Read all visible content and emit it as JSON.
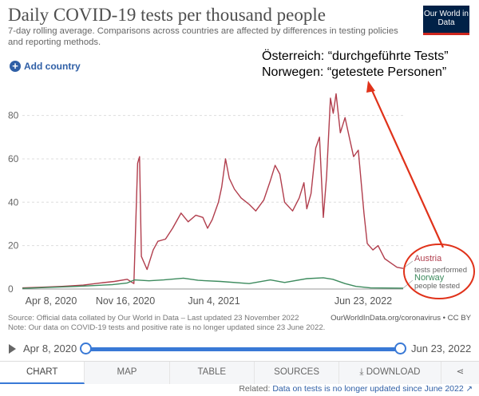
{
  "header": {
    "title": "Daily COVID-19 tests per thousand people",
    "subtitle": "7-day rolling average. Comparisons across countries are affected by differences in testing policies and reporting methods.",
    "logo": "Our World in Data"
  },
  "controls": {
    "add_country": "Add country"
  },
  "annotation": {
    "line1": "Österreich: “durchgeführte Tests”",
    "line2": "Norwegen: “getestete Personen”"
  },
  "chart_data": {
    "type": "line",
    "ylim": [
      0,
      92
    ],
    "yticks": [
      0,
      20,
      40,
      60,
      80
    ],
    "x_ticks": [
      "Apr 8, 2020",
      "Nov 16, 2020",
      "Jun 4, 2021",
      "Jun 23, 2022"
    ],
    "x_domain": [
      "2020-04-08",
      "2022-06-23"
    ],
    "series": [
      {
        "name": "Austria",
        "sublabel": "tests performed",
        "color": "#b13e4d",
        "points": [
          [
            "2020-04-08",
            0.5
          ],
          [
            "2020-05-15",
            0.8
          ],
          [
            "2020-07-01",
            1.2
          ],
          [
            "2020-08-15",
            1.8
          ],
          [
            "2020-09-20",
            2.8
          ],
          [
            "2020-10-20",
            3.5
          ],
          [
            "2020-11-16",
            4.5
          ],
          [
            "2020-11-30",
            2.5
          ],
          [
            "2020-12-08",
            58
          ],
          [
            "2020-12-12",
            61
          ],
          [
            "2020-12-16",
            15
          ],
          [
            "2020-12-28",
            9
          ],
          [
            "2021-01-10",
            18
          ],
          [
            "2021-01-20",
            22
          ],
          [
            "2021-02-05",
            23
          ],
          [
            "2021-02-20",
            28
          ],
          [
            "2021-03-10",
            35
          ],
          [
            "2021-03-25",
            31
          ],
          [
            "2021-04-10",
            34
          ],
          [
            "2021-04-25",
            33
          ],
          [
            "2021-05-05",
            28
          ],
          [
            "2021-05-15",
            32
          ],
          [
            "2021-05-28",
            40
          ],
          [
            "2021-06-04",
            47
          ],
          [
            "2021-06-12",
            60
          ],
          [
            "2021-06-20",
            51
          ],
          [
            "2021-07-01",
            46
          ],
          [
            "2021-07-15",
            42
          ],
          [
            "2021-08-01",
            39
          ],
          [
            "2021-08-15",
            36
          ],
          [
            "2021-09-01",
            41
          ],
          [
            "2021-09-15",
            50
          ],
          [
            "2021-09-25",
            57
          ],
          [
            "2021-10-05",
            53
          ],
          [
            "2021-10-15",
            40
          ],
          [
            "2021-11-01",
            36
          ],
          [
            "2021-11-15",
            42
          ],
          [
            "2021-11-25",
            49
          ],
          [
            "2021-12-01",
            37
          ],
          [
            "2021-12-10",
            44
          ],
          [
            "2021-12-20",
            65
          ],
          [
            "2021-12-28",
            70
          ],
          [
            "2022-01-05",
            33
          ],
          [
            "2022-01-12",
            52
          ],
          [
            "2022-01-20",
            88
          ],
          [
            "2022-01-26",
            81
          ],
          [
            "2022-02-01",
            90
          ],
          [
            "2022-02-10",
            72
          ],
          [
            "2022-02-20",
            79
          ],
          [
            "2022-03-01",
            70
          ],
          [
            "2022-03-10",
            61
          ],
          [
            "2022-03-20",
            64
          ],
          [
            "2022-04-01",
            35
          ],
          [
            "2022-04-08",
            21
          ],
          [
            "2022-04-20",
            18
          ],
          [
            "2022-05-01",
            20
          ],
          [
            "2022-05-15",
            14
          ],
          [
            "2022-05-28",
            12
          ],
          [
            "2022-06-10",
            10
          ],
          [
            "2022-06-23",
            9.5
          ]
        ]
      },
      {
        "name": "Norway",
        "sublabel": "people tested",
        "color": "#3d8b5e",
        "points": [
          [
            "2020-04-08",
            0.3
          ],
          [
            "2020-08-01",
            1.2
          ],
          [
            "2020-10-15",
            2.0
          ],
          [
            "2020-11-16",
            2.8
          ],
          [
            "2020-12-01",
            4.2
          ],
          [
            "2021-01-01",
            3.8
          ],
          [
            "2021-02-01",
            4.2
          ],
          [
            "2021-03-15",
            5.0
          ],
          [
            "2021-04-15",
            4.0
          ],
          [
            "2021-06-01",
            3.5
          ],
          [
            "2021-08-01",
            2.5
          ],
          [
            "2021-09-15",
            4.2
          ],
          [
            "2021-10-15",
            3.0
          ],
          [
            "2021-12-01",
            4.8
          ],
          [
            "2022-01-05",
            5.2
          ],
          [
            "2022-01-25",
            4.5
          ],
          [
            "2022-02-20",
            2.5
          ],
          [
            "2022-03-15",
            1.2
          ],
          [
            "2022-04-15",
            0.5
          ],
          [
            "2022-06-23",
            0.4
          ]
        ]
      }
    ]
  },
  "footer": {
    "source": "Source: Official data collated by Our World in Data – Last updated 23 November 2022",
    "credit": "OurWorldInData.org/coronavirus • CC BY",
    "note": "Note: Our data on COVID-19 tests and positive rate is no longer updated since 23 June 2022."
  },
  "timeline": {
    "start": "Apr 8, 2020",
    "end": "Jun 23, 2022"
  },
  "tabs": [
    "CHART",
    "MAP",
    "TABLE",
    "SOURCES",
    "DOWNLOAD"
  ],
  "related": {
    "prefix": "Related:",
    "link": "Data on tests is no longer updated since June 2022"
  }
}
